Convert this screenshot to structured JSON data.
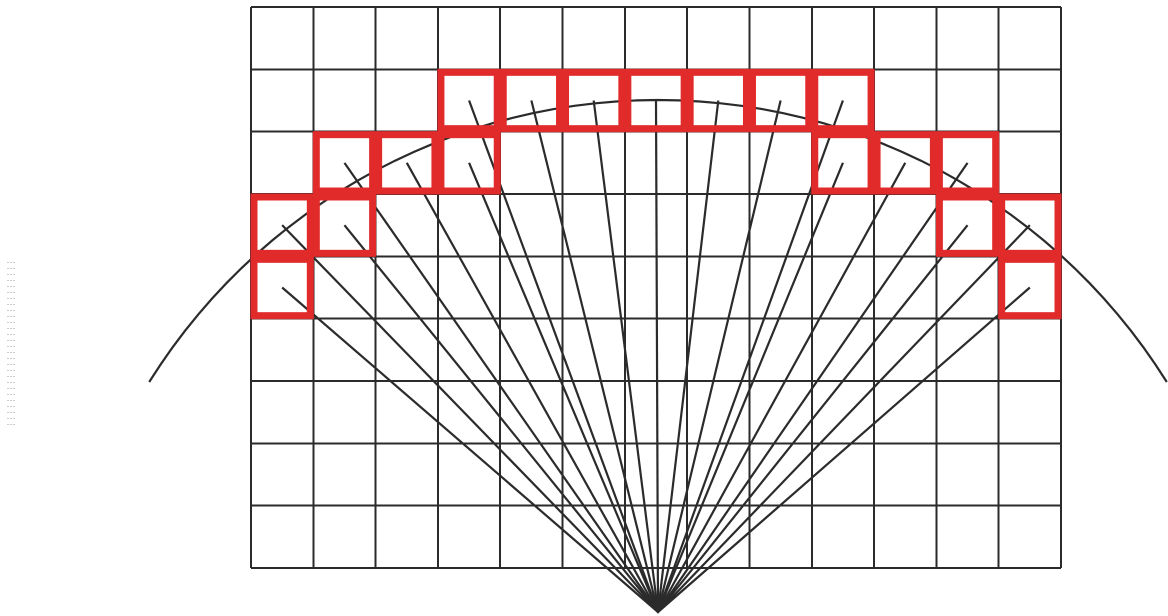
{
  "diagram": {
    "grid": {
      "columns": 13,
      "rows": 9
    },
    "rays": {
      "target_cells": [
        [
          3,
          1
        ],
        [
          4,
          1
        ],
        [
          5,
          1
        ],
        [
          6,
          1
        ],
        [
          7,
          1
        ],
        [
          8,
          1
        ],
        [
          9,
          1
        ],
        [
          1,
          2
        ],
        [
          2,
          2
        ],
        [
          3,
          2
        ],
        [
          9,
          2
        ],
        [
          10,
          2
        ],
        [
          11,
          2
        ],
        [
          0,
          3
        ],
        [
          1,
          3
        ],
        [
          11,
          3
        ],
        [
          12,
          3
        ],
        [
          0,
          4
        ],
        [
          12,
          4
        ]
      ]
    },
    "highlighted_cells": [
      [
        3,
        1
      ],
      [
        4,
        1
      ],
      [
        5,
        1
      ],
      [
        6,
        1
      ],
      [
        7,
        1
      ],
      [
        8,
        1
      ],
      [
        9,
        1
      ],
      [
        1,
        2
      ],
      [
        2,
        2
      ],
      [
        3,
        2
      ],
      [
        9,
        2
      ],
      [
        10,
        2
      ],
      [
        11,
        2
      ],
      [
        0,
        3
      ],
      [
        1,
        3
      ],
      [
        11,
        3
      ],
      [
        12,
        3
      ],
      [
        0,
        4
      ],
      [
        12,
        4
      ]
    ],
    "colors": {
      "grid": "#2b2b2b",
      "highlight": "#e12a2a",
      "background": "#ffffff"
    }
  }
}
